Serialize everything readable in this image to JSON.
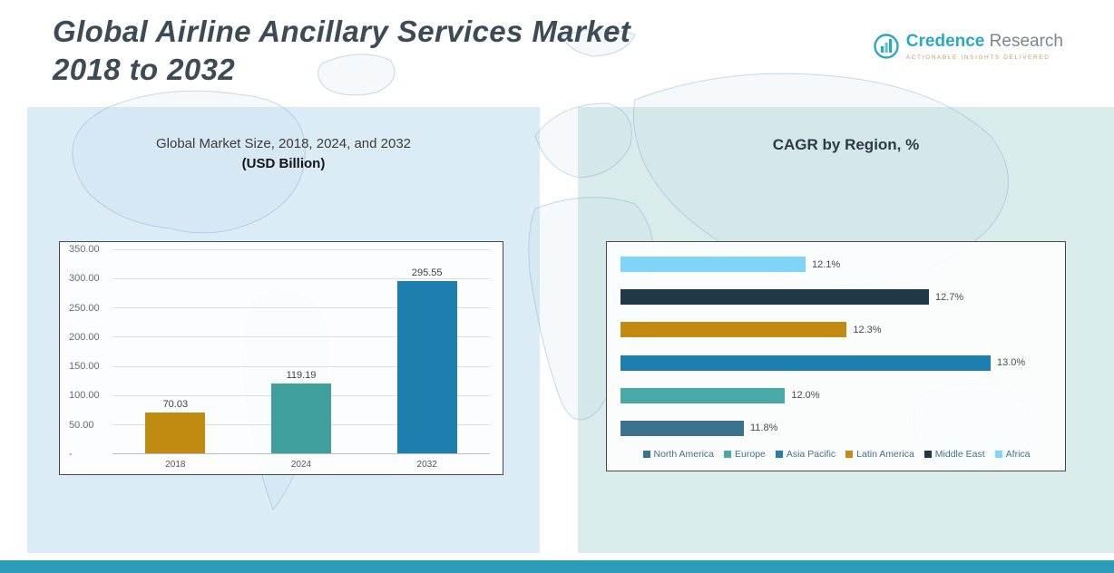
{
  "header": {
    "title_line1": "Global Airline Ancillary Services Market",
    "title_line2": "2018 to 2032"
  },
  "logo": {
    "brand_primary": "Credence",
    "brand_secondary": "Research",
    "tagline": "Actionable Insights Delivered",
    "accent_color": "#2aa9c2"
  },
  "left_panel": {
    "heading": "Global Market Size, 2018, 2024, and 2032",
    "subheading": "(USD Billion)"
  },
  "right_panel": {
    "heading": "CAGR by Region, %"
  },
  "footer": {
    "color": "#2d9cba"
  },
  "chart_data": [
    {
      "type": "bar",
      "title": "Global Market Size, 2018, 2024, and 2032 (USD Billion)",
      "categories": [
        "2018",
        "2024",
        "2032"
      ],
      "values": [
        70.03,
        119.19,
        295.55
      ],
      "value_labels": [
        "70.03",
        "119.19",
        "295.55"
      ],
      "bar_colors": [
        "#c08b10",
        "#3e9f9c",
        "#1e7faf"
      ],
      "ylabel": "",
      "xlabel": "",
      "ylim": [
        0,
        350
      ],
      "yticks": [
        350,
        300,
        250,
        200,
        150,
        100,
        50,
        0
      ],
      "ytick_labels": [
        "350.00",
        "300.00",
        "250.00",
        "200.00",
        "150.00",
        "100.00",
        "50.00",
        "-"
      ],
      "grid": true,
      "legend": false
    },
    {
      "type": "bar",
      "orientation": "horizontal",
      "title": "CAGR by Region, %",
      "categories": [
        "Africa",
        "Middle East",
        "Latin America",
        "Asia Pacific",
        "Europe",
        "North America"
      ],
      "values": [
        12.1,
        12.7,
        12.3,
        13.0,
        12.0,
        11.8
      ],
      "value_labels": [
        "12.1%",
        "12.7%",
        "12.3%",
        "13.0%",
        "12.0%",
        "11.8%"
      ],
      "bar_colors": [
        "#7ed5f6",
        "#20394a",
        "#c08b10",
        "#1e7faf",
        "#48a9a6",
        "#3a728f"
      ],
      "xlim": [
        11.2,
        13.3
      ],
      "grid": false,
      "legend_position": "bottom",
      "legend": [
        {
          "label": "North America",
          "color": "#3a728f"
        },
        {
          "label": "Europe",
          "color": "#48a9a6"
        },
        {
          "label": "Asia Pacific",
          "color": "#1e7faf"
        },
        {
          "label": "Latin America",
          "color": "#c08b10"
        },
        {
          "label": "Middle East",
          "color": "#20394a"
        },
        {
          "label": "Africa",
          "color": "#7ed5f6"
        }
      ]
    }
  ]
}
